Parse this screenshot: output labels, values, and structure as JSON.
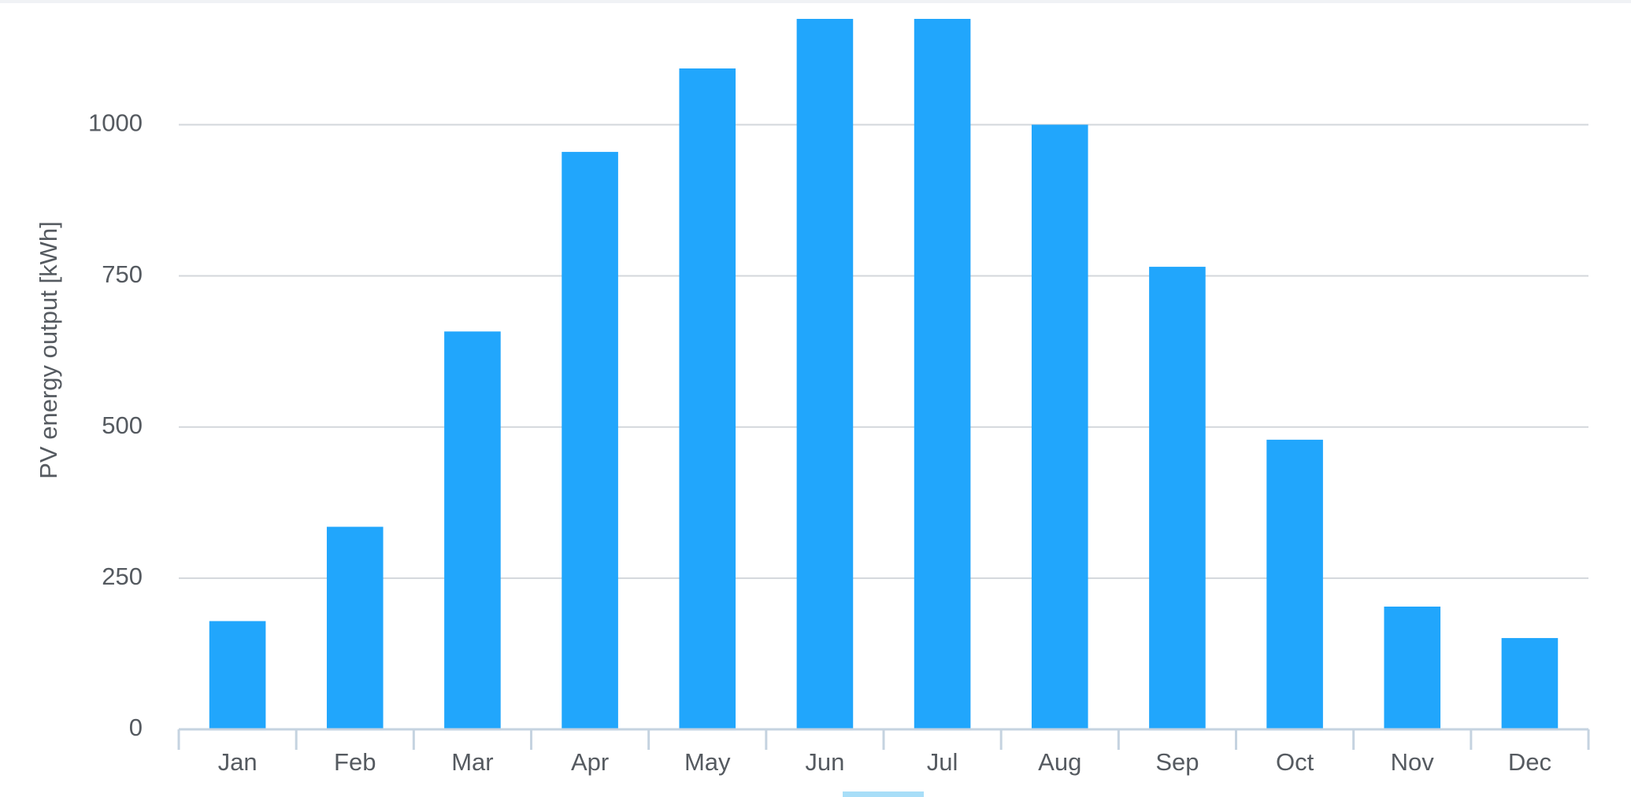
{
  "chart_data": {
    "type": "bar",
    "y_label": "PV energy output [kWh]",
    "categories": [
      "Jan",
      "Feb",
      "Mar",
      "Apr",
      "May",
      "Jun",
      "Jul",
      "Aug",
      "Sep",
      "Oct",
      "Nov",
      "Dec"
    ],
    "values": [
      179,
      335,
      658,
      955,
      1093,
      1175,
      1175,
      1000,
      765,
      479,
      203,
      151
    ],
    "color": "#21a6fc",
    "ylim": [
      0,
      1175
    ],
    "yticks": [
      0,
      250,
      500,
      750,
      1000
    ],
    "grid": true
  }
}
